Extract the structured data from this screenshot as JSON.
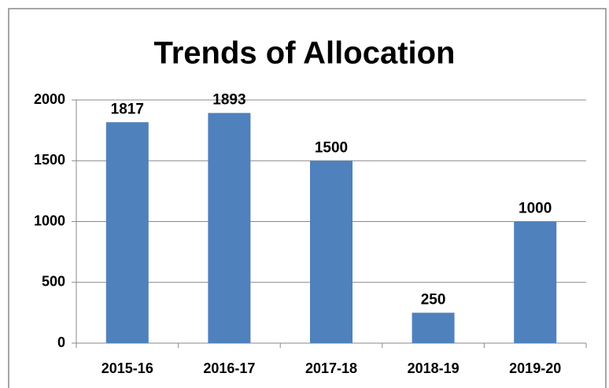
{
  "chart_data": {
    "type": "bar",
    "title": "Trends of Allocation",
    "categories": [
      "2015-16",
      "2016-17",
      "2017-18",
      "2018-19",
      "2019-20"
    ],
    "values": [
      1817,
      1893,
      1500,
      250,
      1000
    ],
    "color": "#4f81bd",
    "ylim": [
      0,
      2000
    ],
    "yticks": [
      0,
      500,
      1000,
      1500,
      2000
    ],
    "grid": true
  }
}
